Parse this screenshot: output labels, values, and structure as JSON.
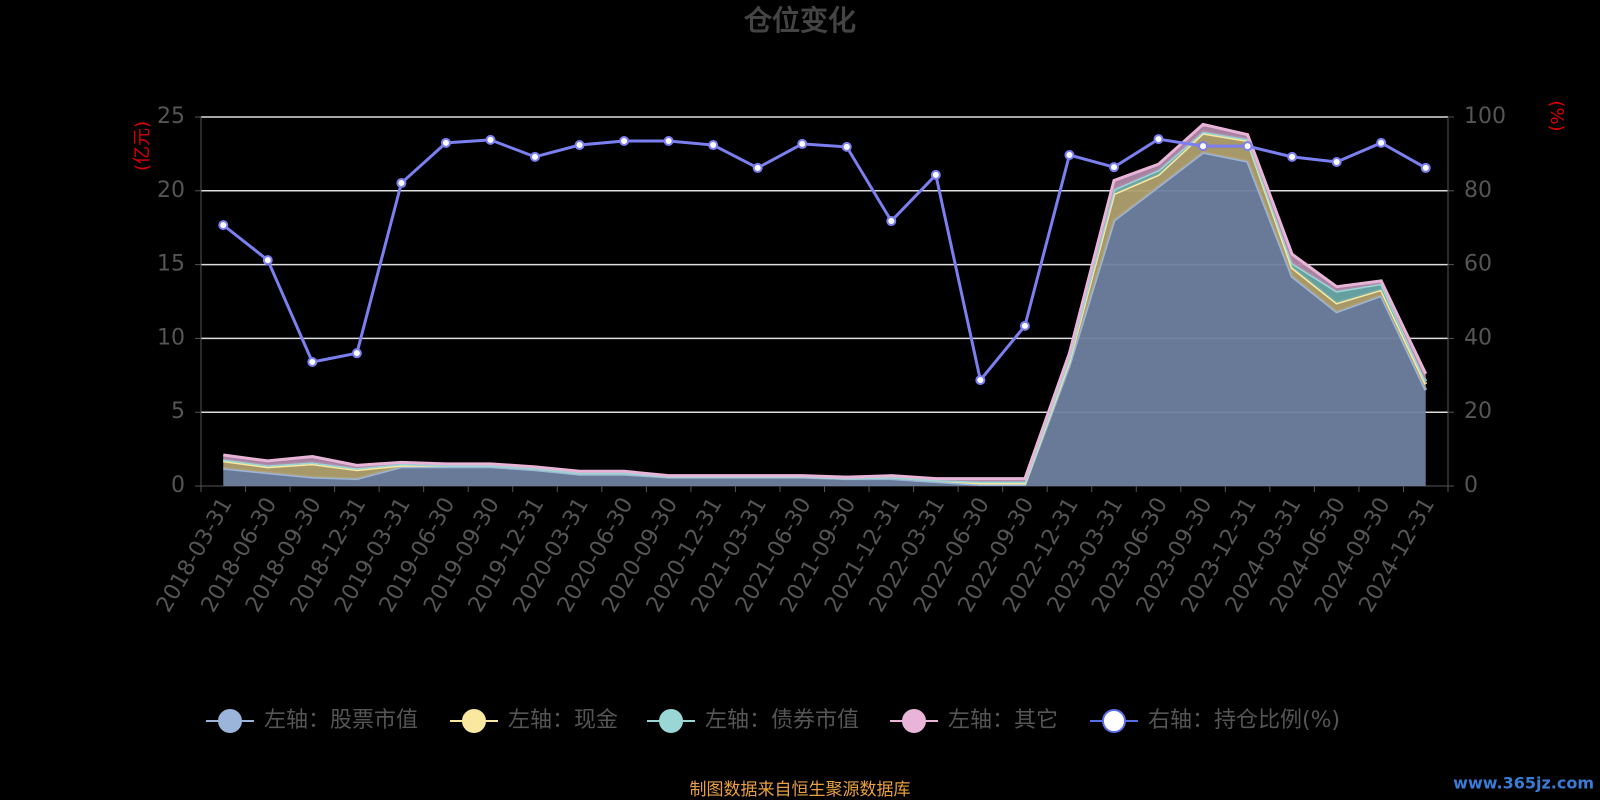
{
  "chart_data": {
    "type": "stacked-area-line",
    "title": "仓位变化",
    "y_label": "(亿元)",
    "y2_label": "(%)",
    "source": "制图数据来自恒生聚源数据库",
    "watermark": "www.365jz.com",
    "categories": [
      "2018-03-31",
      "2018-06-30",
      "2018-09-30",
      "2018-12-31",
      "2019-03-31",
      "2019-06-30",
      "2019-09-30",
      "2019-12-31",
      "2020-03-31",
      "2020-06-30",
      "2020-09-30",
      "2020-12-31",
      "2021-03-31",
      "2021-06-30",
      "2021-09-30",
      "2021-12-31",
      "2022-03-31",
      "2022-06-30",
      "2022-09-30",
      "2022-12-31",
      "2023-03-31",
      "2023-06-30",
      "2023-09-30",
      "2023-12-31",
      "2024-03-31",
      "2024-06-30",
      "2024-09-30",
      "2024-12-31"
    ],
    "series": [
      {
        "name": "左轴：股票市值",
        "color": "#9bb4d9",
        "values": [
          1.2,
          0.9,
          0.6,
          0.5,
          1.3,
          1.3,
          1.3,
          1.1,
          0.8,
          0.8,
          0.6,
          0.6,
          0.6,
          0.6,
          0.5,
          0.5,
          0.3,
          0.1,
          0.1,
          8.2,
          18.0,
          20.3,
          22.6,
          22.0,
          14.2,
          11.8,
          12.9,
          6.5
        ]
      },
      {
        "name": "左轴：现金",
        "color": "#fbe8a0",
        "values": [
          0.5,
          0.4,
          0.9,
          0.6,
          0.1,
          0.1,
          0.1,
          0.1,
          0.1,
          0.1,
          0.05,
          0.05,
          0.05,
          0.05,
          0.05,
          0.1,
          0.1,
          0.1,
          0.1,
          0.3,
          1.8,
          0.8,
          1.3,
          1.4,
          0.6,
          0.6,
          0.4,
          0.4
        ]
      },
      {
        "name": "左轴：债券市值",
        "color": "#9ad6d6",
        "values": [
          0.1,
          0.1,
          0.1,
          0.1,
          0.1,
          0,
          0,
          0,
          0,
          0,
          0,
          0,
          0,
          0,
          0,
          0,
          0,
          0.1,
          0.1,
          0.2,
          0.3,
          0.3,
          0.1,
          0.1,
          0.3,
          0.8,
          0.4,
          0.2
        ]
      },
      {
        "name": "左轴：其它",
        "color": "#e8b4d8",
        "values": [
          0.3,
          0.3,
          0.4,
          0.2,
          0.1,
          0.1,
          0.1,
          0.1,
          0.1,
          0.1,
          0.05,
          0.05,
          0.05,
          0.05,
          0.05,
          0.1,
          0.1,
          0.2,
          0.2,
          0.3,
          0.6,
          0.4,
          0.5,
          0.3,
          0.6,
          0.3,
          0.2,
          0.5
        ]
      },
      {
        "name": "右轴：持仓比例(%)",
        "color": "#7b7ff0",
        "axis": "y2",
        "values": [
          70.7,
          61.2,
          33.6,
          36.0,
          82.1,
          93.0,
          93.8,
          89.2,
          92.4,
          93.5,
          93.5,
          92.4,
          86.2,
          92.7,
          91.9,
          71.8,
          84.3,
          28.7,
          43.4,
          89.7,
          86.4,
          94.0,
          92.1,
          92.1,
          89.2,
          87.8,
          93.0,
          86.2
        ]
      }
    ],
    "ylim": [
      0,
      25
    ],
    "yticks": [
      0,
      5,
      10,
      15,
      20,
      25
    ],
    "y2lim": [
      0,
      100
    ],
    "y2ticks": [
      0,
      20,
      40,
      60,
      80,
      100
    ],
    "grid": true
  }
}
